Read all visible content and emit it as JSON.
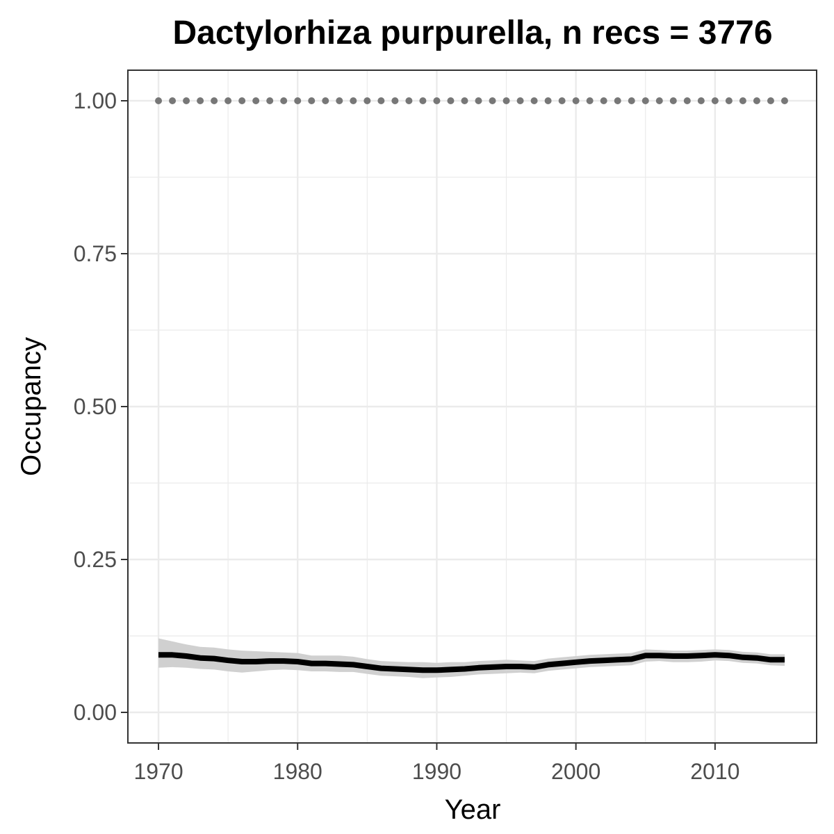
{
  "chart_data": {
    "type": "line",
    "title": "Dactylorhiza purpurella, n recs = 3776",
    "xlabel": "Year",
    "ylabel": "Occupancy",
    "xlim": [
      1967.8,
      2017.3
    ],
    "ylim": [
      -0.05,
      1.05
    ],
    "x_ticks": [
      1970,
      1980,
      1990,
      2000,
      2010
    ],
    "x_tick_labels": [
      "1970",
      "1980",
      "1990",
      "2000",
      "2010"
    ],
    "y_ticks": [
      0,
      0.25,
      0.5,
      0.75,
      1.0
    ],
    "y_tick_labels": [
      "0.00",
      "0.25",
      "0.50",
      "0.75",
      "1.00"
    ],
    "grid": true,
    "colors": {
      "line": "#000000",
      "ribbon": "#d0d0d0",
      "points": "#777777",
      "grid": "#ebebeb",
      "border": "#333333",
      "tick_text": "#4d4d4d"
    },
    "x": [
      1970,
      1971,
      1972,
      1973,
      1974,
      1975,
      1976,
      1977,
      1978,
      1979,
      1980,
      1981,
      1982,
      1983,
      1984,
      1985,
      1986,
      1987,
      1988,
      1989,
      1990,
      1991,
      1992,
      1993,
      1994,
      1995,
      1996,
      1997,
      1998,
      1999,
      2000,
      2001,
      2002,
      2003,
      2004,
      2005,
      2006,
      2007,
      2008,
      2009,
      2010,
      2011,
      2012,
      2013,
      2014,
      2015
    ],
    "series": [
      {
        "type": "line",
        "values": [
          0.094,
          0.094,
          0.092,
          0.089,
          0.088,
          0.085,
          0.083,
          0.083,
          0.084,
          0.084,
          0.083,
          0.08,
          0.08,
          0.079,
          0.078,
          0.075,
          0.072,
          0.071,
          0.07,
          0.069,
          0.069,
          0.07,
          0.071,
          0.073,
          0.074,
          0.075,
          0.075,
          0.074,
          0.078,
          0.08,
          0.082,
          0.084,
          0.085,
          0.086,
          0.087,
          0.093,
          0.093,
          0.092,
          0.092,
          0.093,
          0.094,
          0.093,
          0.09,
          0.089,
          0.086,
          0.086
        ],
        "lower": [
          0.073,
          0.074,
          0.073,
          0.071,
          0.07,
          0.067,
          0.065,
          0.067,
          0.069,
          0.07,
          0.069,
          0.067,
          0.067,
          0.066,
          0.066,
          0.063,
          0.06,
          0.059,
          0.058,
          0.056,
          0.057,
          0.058,
          0.06,
          0.062,
          0.063,
          0.064,
          0.065,
          0.064,
          0.068,
          0.07,
          0.072,
          0.074,
          0.075,
          0.076,
          0.077,
          0.083,
          0.084,
          0.082,
          0.082,
          0.083,
          0.085,
          0.084,
          0.081,
          0.08,
          0.077,
          0.076
        ],
        "upper": [
          0.121,
          0.116,
          0.111,
          0.107,
          0.106,
          0.103,
          0.101,
          0.1,
          0.099,
          0.098,
          0.097,
          0.093,
          0.093,
          0.093,
          0.091,
          0.087,
          0.084,
          0.083,
          0.082,
          0.082,
          0.081,
          0.082,
          0.082,
          0.084,
          0.085,
          0.086,
          0.085,
          0.084,
          0.088,
          0.09,
          0.092,
          0.094,
          0.095,
          0.096,
          0.097,
          0.103,
          0.102,
          0.101,
          0.101,
          0.102,
          0.103,
          0.102,
          0.099,
          0.098,
          0.095,
          0.095
        ]
      },
      {
        "type": "points",
        "values": [
          1,
          1,
          1,
          1,
          1,
          1,
          1,
          1,
          1,
          1,
          1,
          1,
          1,
          1,
          1,
          1,
          1,
          1,
          1,
          1,
          1,
          1,
          1,
          1,
          1,
          1,
          1,
          1,
          1,
          1,
          1,
          1,
          1,
          1,
          1,
          1,
          1,
          1,
          1,
          1,
          1,
          1,
          1,
          1,
          1,
          1
        ]
      }
    ]
  }
}
